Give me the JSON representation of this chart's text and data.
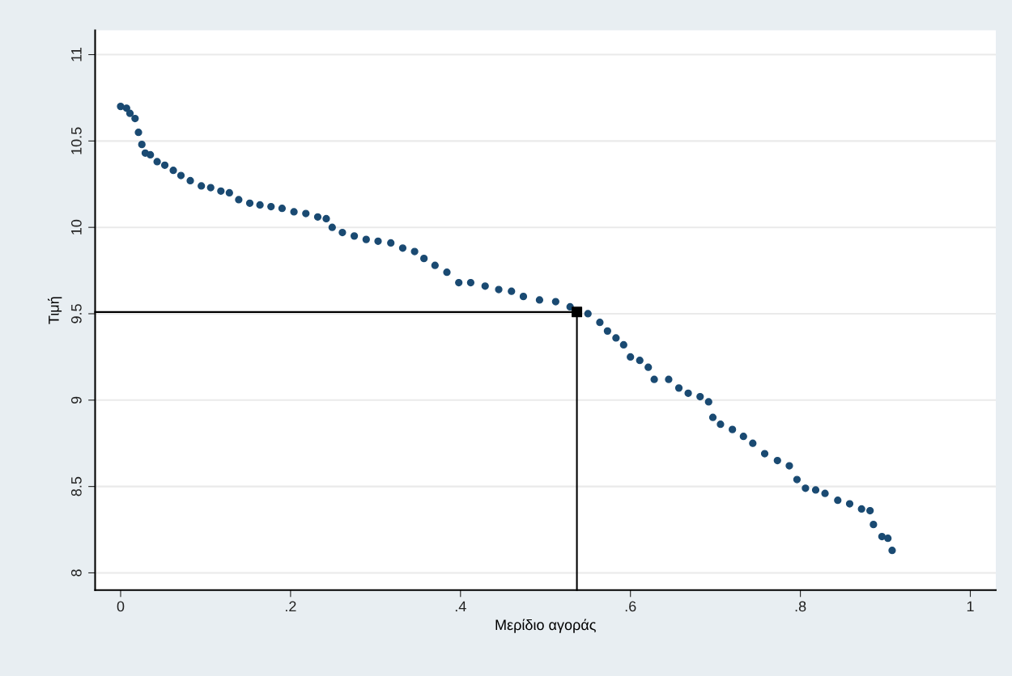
{
  "chart_data": {
    "type": "scatter",
    "xlabel": "Μερίδιο αγοράς",
    "ylabel": "Τιμή",
    "xlim": [
      -0.03,
      1.03
    ],
    "ylim": [
      7.9,
      11.14
    ],
    "xticks": [
      0,
      {
        "value": 0.2,
        "label": ".2"
      },
      {
        "value": 0.4,
        "label": ".4"
      },
      {
        "value": 0.6,
        "label": ".6"
      },
      {
        "value": 0.8,
        "label": ".8"
      },
      1
    ],
    "yticks": [
      8,
      8.5,
      9,
      9.5,
      10,
      10.5,
      11
    ],
    "grid": "y",
    "marker": "circle",
    "series": [
      {
        "type": "line",
        "color": "#000000",
        "marker": "none",
        "x": [
          -0.03,
          0.537,
          0.537
        ],
        "values": [
          9.51,
          9.51,
          7.9
        ]
      },
      {
        "color": "#1a4a72",
        "x": [
          0,
          0.007,
          0.011,
          0.017,
          0.021,
          0.025,
          0.029,
          0.035,
          0.043,
          0.052,
          0.062,
          0.071,
          0.082,
          0.095,
          0.106,
          0.118,
          0.128,
          0.139,
          0.152,
          0.164,
          0.177,
          0.19,
          0.204,
          0.218,
          0.232,
          0.242,
          0.249,
          0.261,
          0.275,
          0.289,
          0.303,
          0.318,
          0.332,
          0.346,
          0.357,
          0.37,
          0.384,
          0.398,
          0.412,
          0.429,
          0.445,
          0.46,
          0.474,
          0.493,
          0.512,
          0.529,
          0.55,
          0.564,
          0.573,
          0.583,
          0.592,
          0.6,
          0.611,
          0.621,
          0.628,
          0.645,
          0.657,
          0.668,
          0.682,
          0.692,
          0.697,
          0.706,
          0.72,
          0.733,
          0.744,
          0.758,
          0.773,
          0.787,
          0.796,
          0.806,
          0.818,
          0.829,
          0.844,
          0.858,
          0.872,
          0.882,
          0.886,
          0.896,
          0.903,
          0.908
        ],
        "values": [
          10.7,
          10.69,
          10.66,
          10.63,
          10.55,
          10.48,
          10.43,
          10.42,
          10.38,
          10.36,
          10.33,
          10.3,
          10.27,
          10.24,
          10.23,
          10.21,
          10.2,
          10.16,
          10.14,
          10.13,
          10.12,
          10.11,
          10.09,
          10.08,
          10.06,
          10.05,
          10.0,
          9.97,
          9.95,
          9.93,
          9.92,
          9.91,
          9.88,
          9.86,
          9.82,
          9.78,
          9.74,
          9.68,
          9.68,
          9.66,
          9.64,
          9.63,
          9.6,
          9.58,
          9.57,
          9.54,
          9.5,
          9.45,
          9.4,
          9.36,
          9.32,
          9.25,
          9.23,
          9.19,
          9.12,
          9.12,
          9.07,
          9.04,
          9.02,
          8.99,
          8.9,
          8.86,
          8.83,
          8.79,
          8.75,
          8.69,
          8.65,
          8.62,
          8.54,
          8.49,
          8.48,
          8.46,
          8.42,
          8.4,
          8.37,
          8.36,
          8.28,
          8.21,
          8.2,
          8.13
        ]
      },
      {
        "type": "scatter",
        "color": "#000000",
        "marker": "square",
        "x": [
          0.537
        ],
        "values": [
          9.51
        ]
      }
    ]
  }
}
